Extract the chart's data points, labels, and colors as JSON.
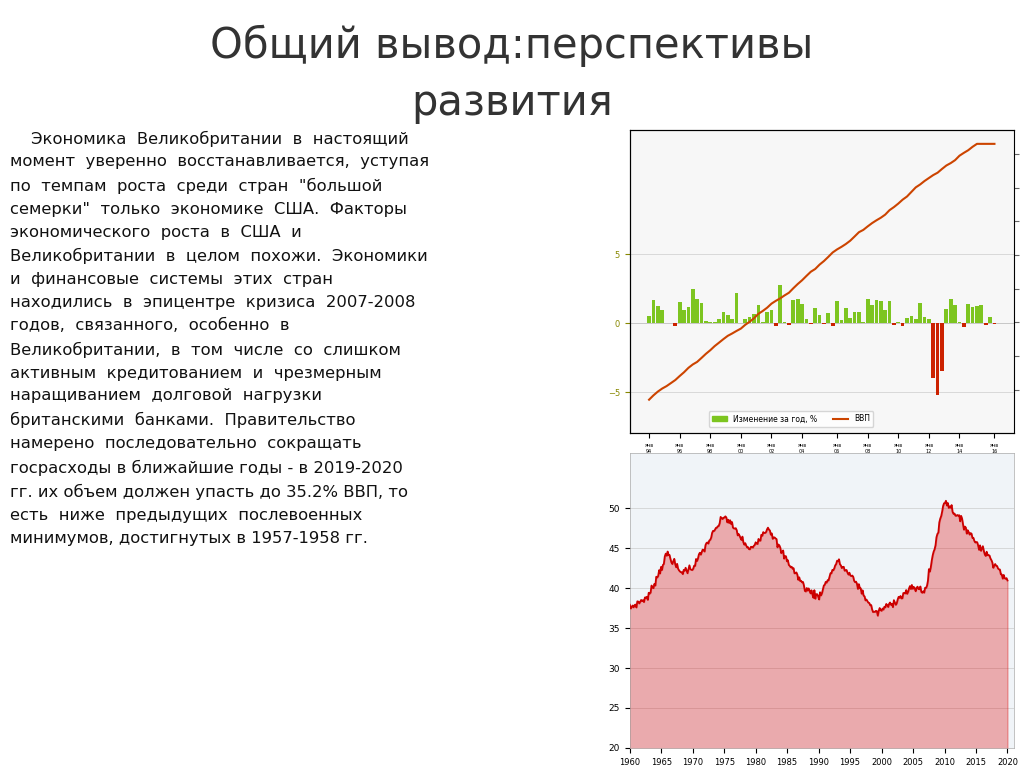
{
  "title_line1": "Общий вывод:перспективы",
  "title_line2": "развития",
  "body_text": "    Экономика  Великобритании  в  настоящий\nмомент  уверенно  восстанавливается,  уступая\nпо  темпам  роста  среди  стран  \"большой\nсемерки\"  только  экономике  США.  Факторы\nэкономического  роста  в  США  и\nВеликобритании  в  целом  похожи.  Экономики\nи  финансовые  системы  этих  стран\nнаходились  в  эпицентре  кризиса  2007-2008\nгодов,  связанного,  особенно  в\nВеликобритании,  в  том  числе  со  слишком\nактивным  кредитованием  и  чрезмерным\nнаращиванием  долговой  нагрузки\nбританскими  банками.  Правительство\nнамерено  последовательно  сокращать\nгосрасходы в ближайшие годы - в 2019-2020\nгг. их объем должен упасть до 35.2% ВВП, то\nесть  ниже  предыдущих  послевоенных\nминимумов, достигнутых в 1957-1958 гг.",
  "bg_color": "#ffffff",
  "title_color": "#333333",
  "text_color": "#111111"
}
